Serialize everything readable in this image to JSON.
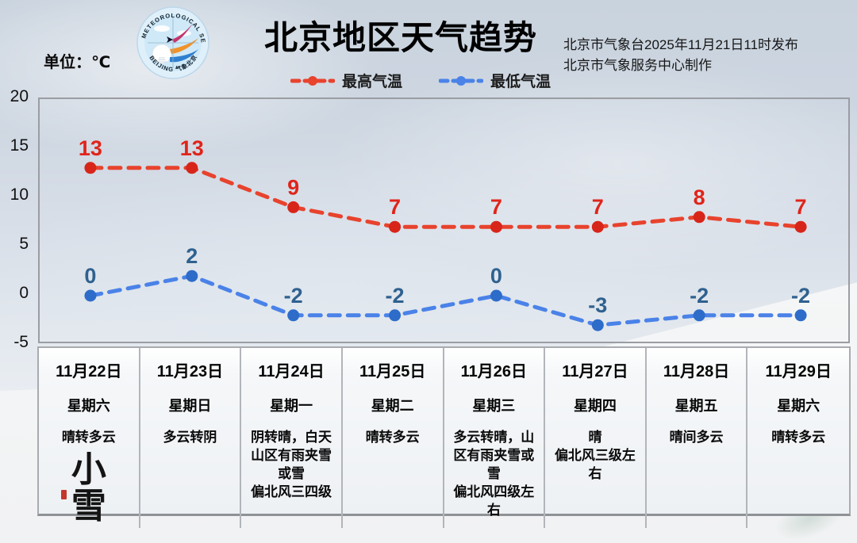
{
  "header": {
    "title": "北京地区天气趋势",
    "issued_line1": "北京市气象台2025年11月21日11时发布",
    "issued_line2": "北京市气象服务中心制作",
    "unit_label": "单位：℃",
    "logo": {
      "arc_text_top": "METEOROLOGICAL SERVICE",
      "arc_text_bottom": "BEIJING 气象北京"
    }
  },
  "legend": [
    {
      "label": "最高气温",
      "color": "#e8432d"
    },
    {
      "label": "最低气温",
      "color": "#4a82e8"
    }
  ],
  "chart_data": {
    "type": "line",
    "line_style": "dashed",
    "categories": [
      "11月22日",
      "11月23日",
      "11月24日",
      "11月25日",
      "11月26日",
      "11月27日",
      "11月28日",
      "11月29日"
    ],
    "series": [
      {
        "name": "最高气温",
        "values": [
          13,
          13,
          9,
          7,
          7,
          7,
          8,
          7
        ],
        "color": "#e8432d",
        "marker_color": "#d8251a",
        "label_color": "#e0241a"
      },
      {
        "name": "最低气温",
        "values": [
          0,
          2,
          -2,
          -2,
          0,
          -3,
          -2,
          -2
        ],
        "color": "#4a82e8",
        "marker_color": "#2d6cc9",
        "label_color": "#2f618f"
      }
    ],
    "ylabel": "℃",
    "ylim": [
      -5,
      20
    ],
    "yticks": [
      20,
      15,
      10,
      5,
      0,
      -5
    ],
    "grid": false,
    "legend_position": "top-center",
    "axis_color": "#9a9da2"
  },
  "forecast_table": {
    "columns": [
      {
        "date": "11月22日",
        "weekday": "星期六",
        "weather": "晴转多云",
        "artwork": "小\n雪"
      },
      {
        "date": "11月23日",
        "weekday": "星期日",
        "weather": "多云转阴"
      },
      {
        "date": "11月24日",
        "weekday": "星期一",
        "weather": "阴转晴，白天山区有雨夹雪或雪\n偏北风三四级"
      },
      {
        "date": "11月25日",
        "weekday": "星期二",
        "weather": "晴转多云"
      },
      {
        "date": "11月26日",
        "weekday": "星期三",
        "weather": "多云转晴，山区有雨夹雪或雪\n偏北风四级左右"
      },
      {
        "date": "11月27日",
        "weekday": "星期四",
        "weather": "晴\n偏北风三级左右"
      },
      {
        "date": "11月28日",
        "weekday": "星期五",
        "weather": "晴间多云"
      },
      {
        "date": "11月29日",
        "weekday": "星期六",
        "weather": "晴转多云"
      }
    ],
    "solar_term": "小雪"
  }
}
